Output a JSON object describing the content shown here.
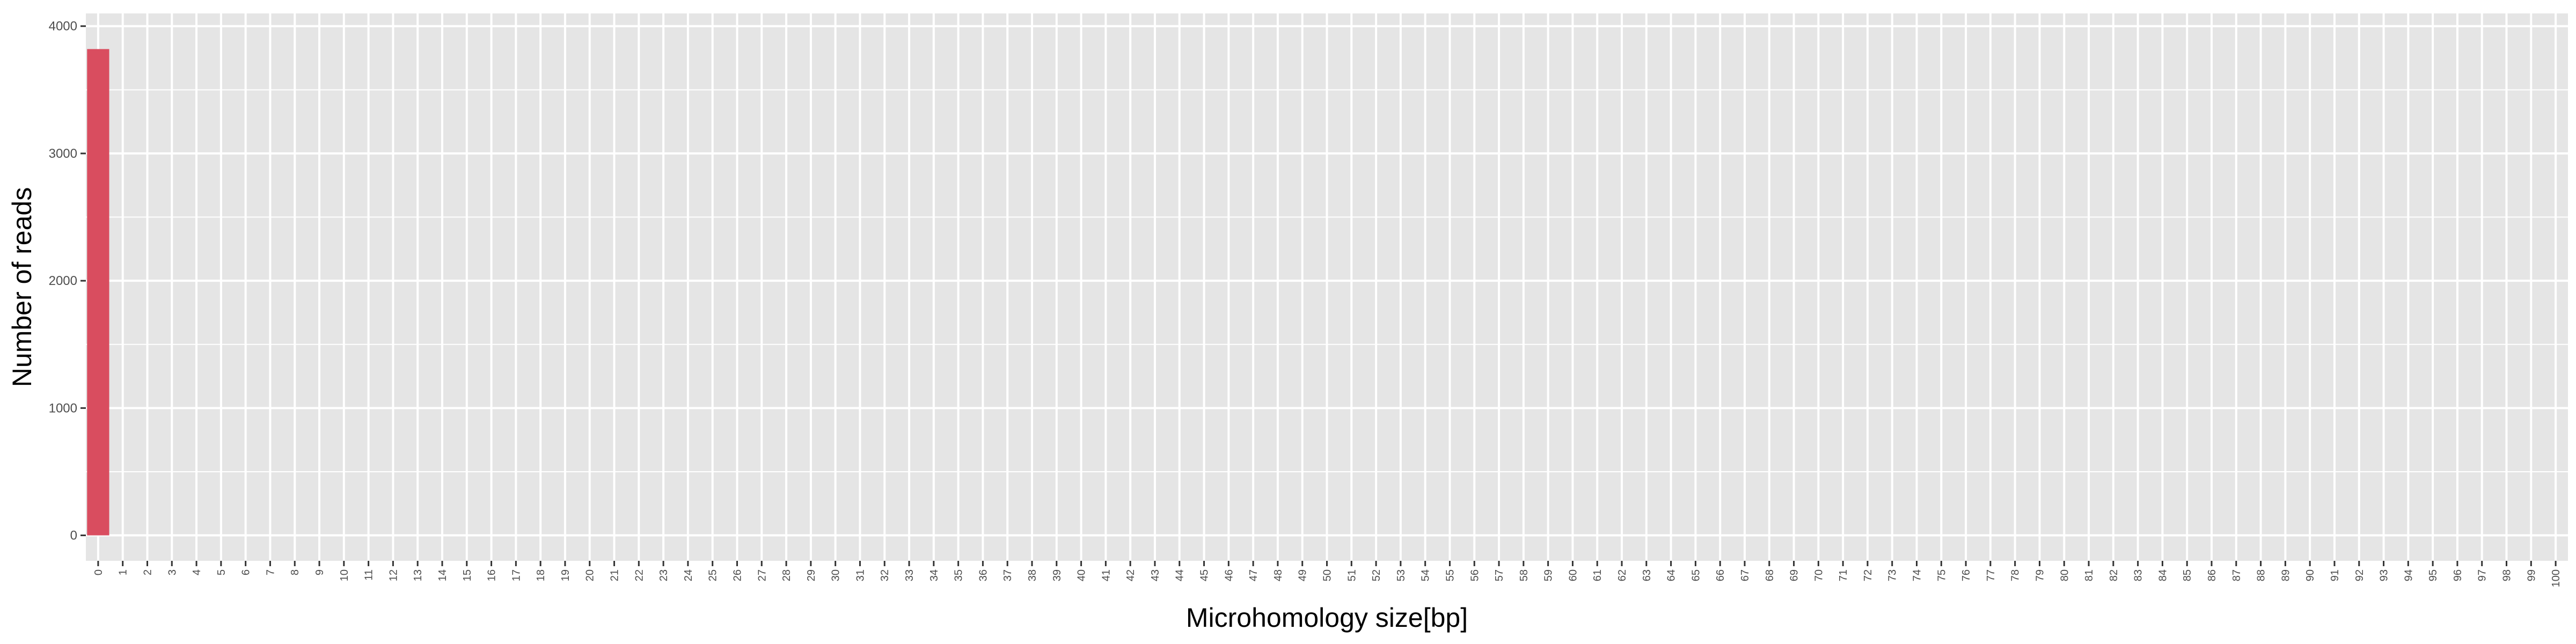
{
  "chart_data": {
    "type": "bar",
    "title": "",
    "xlabel": "Microhomology size[bp]",
    "ylabel": "Number of reads",
    "categories": [
      "0",
      "1",
      "2",
      "3",
      "4",
      "5",
      "6",
      "7",
      "8",
      "9",
      "10",
      "11",
      "12",
      "13",
      "14",
      "15",
      "16",
      "17",
      "18",
      "19",
      "20",
      "21",
      "22",
      "23",
      "24",
      "25",
      "26",
      "27",
      "28",
      "29",
      "30",
      "31",
      "32",
      "33",
      "34",
      "35",
      "36",
      "37",
      "38",
      "39",
      "40",
      "41",
      "42",
      "43",
      "44",
      "45",
      "46",
      "47",
      "48",
      "49",
      "50",
      "51",
      "52",
      "53",
      "54",
      "55",
      "56",
      "57",
      "58",
      "59",
      "60",
      "61",
      "62",
      "63",
      "64",
      "65",
      "66",
      "67",
      "68",
      "69",
      "70",
      "71",
      "72",
      "73",
      "74",
      "75",
      "76",
      "77",
      "78",
      "79",
      "80",
      "81",
      "82",
      "83",
      "84",
      "85",
      "86",
      "87",
      "88",
      "89",
      "90",
      "91",
      "92",
      "93",
      "94",
      "95",
      "96",
      "97",
      "98",
      "99",
      "100"
    ],
    "values": [
      3820,
      0,
      0,
      0,
      0,
      0,
      0,
      0,
      0,
      0,
      0,
      0,
      0,
      0,
      0,
      0,
      0,
      0,
      0,
      0,
      0,
      0,
      0,
      0,
      0,
      0,
      0,
      0,
      0,
      0,
      0,
      0,
      0,
      0,
      0,
      0,
      0,
      0,
      0,
      0,
      0,
      0,
      0,
      0,
      0,
      0,
      0,
      0,
      0,
      0,
      0,
      0,
      0,
      0,
      0,
      0,
      0,
      0,
      0,
      0,
      0,
      0,
      0,
      0,
      0,
      0,
      0,
      0,
      0,
      0,
      0,
      0,
      0,
      0,
      0,
      0,
      0,
      0,
      0,
      0,
      0,
      0,
      0,
      0,
      0,
      0,
      0,
      0,
      0,
      0,
      0,
      0,
      0,
      0,
      0,
      0,
      0,
      0,
      0,
      0,
      0
    ],
    "ylim": [
      -200,
      4100
    ],
    "yticks": [
      0,
      1000,
      2000,
      3000,
      4000
    ],
    "grid": true,
    "legend": "none",
    "colors": {
      "bar": "#d94d5f",
      "panel_background": "#e5e5e5",
      "gridline": "#ffffff",
      "tick_text": "#4d4d4d",
      "axis_title": "#000000"
    }
  }
}
